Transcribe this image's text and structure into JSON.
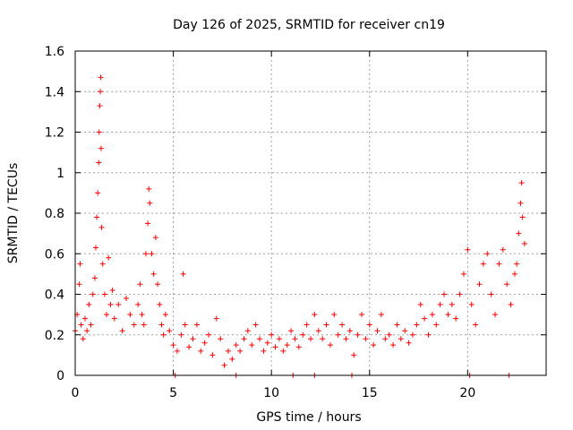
{
  "chart_data": {
    "type": "scatter",
    "title": "Day 126 of 2025, SRMTID for receiver cn19",
    "xlabel": "GPS time / hours",
    "ylabel": "SRMTID / TECUs",
    "xlim": [
      0,
      24
    ],
    "ylim": [
      0,
      1.6
    ],
    "xticks": [
      0,
      5,
      10,
      15,
      20
    ],
    "xtick_labels": [
      "0",
      "5",
      "10",
      "15",
      "20"
    ],
    "yticks": [
      0,
      0.2,
      0.4,
      0.6,
      0.8,
      1.0,
      1.2,
      1.4,
      1.6
    ],
    "ytick_labels": [
      "0",
      "0.2",
      "0.4",
      "0.6",
      "0.8",
      "1",
      "1.2",
      "1.4",
      "1.6"
    ],
    "grid": true,
    "marker": "+",
    "color": "#ff0000",
    "series": [
      {
        "name": "cn19",
        "points": [
          [
            0.0,
            0.22
          ],
          [
            0.1,
            0.3
          ],
          [
            0.2,
            0.45
          ],
          [
            0.25,
            0.55
          ],
          [
            0.3,
            0.25
          ],
          [
            0.4,
            0.18
          ],
          [
            0.5,
            0.28
          ],
          [
            0.6,
            0.22
          ],
          [
            0.7,
            0.35
          ],
          [
            0.8,
            0.25
          ],
          [
            0.9,
            0.4
          ],
          [
            1.0,
            0.48
          ],
          [
            1.05,
            0.63
          ],
          [
            1.1,
            0.78
          ],
          [
            1.15,
            0.9
          ],
          [
            1.2,
            1.05
          ],
          [
            1.22,
            1.2
          ],
          [
            1.25,
            1.33
          ],
          [
            1.28,
            1.4
          ],
          [
            1.3,
            1.47
          ],
          [
            1.32,
            1.12
          ],
          [
            1.35,
            0.73
          ],
          [
            1.4,
            0.55
          ],
          [
            1.5,
            0.4
          ],
          [
            1.6,
            0.3
          ],
          [
            1.7,
            0.58
          ],
          [
            1.8,
            0.35
          ],
          [
            1.9,
            0.42
          ],
          [
            2.0,
            0.28
          ],
          [
            2.2,
            0.35
          ],
          [
            2.4,
            0.22
          ],
          [
            2.6,
            0.38
          ],
          [
            2.8,
            0.3
          ],
          [
            3.0,
            0.25
          ],
          [
            3.2,
            0.35
          ],
          [
            3.3,
            0.45
          ],
          [
            3.4,
            0.3
          ],
          [
            3.5,
            0.25
          ],
          [
            3.6,
            0.6
          ],
          [
            3.7,
            0.75
          ],
          [
            3.75,
            0.92
          ],
          [
            3.8,
            0.85
          ],
          [
            3.9,
            0.6
          ],
          [
            4.0,
            0.5
          ],
          [
            4.1,
            0.68
          ],
          [
            4.2,
            0.45
          ],
          [
            4.3,
            0.35
          ],
          [
            4.4,
            0.25
          ],
          [
            4.5,
            0.2
          ],
          [
            4.6,
            0.3
          ],
          [
            4.8,
            0.22
          ],
          [
            5.0,
            0.15
          ],
          [
            5.2,
            0.12
          ],
          [
            5.4,
            0.2
          ],
          [
            5.5,
            0.5
          ],
          [
            5.6,
            0.25
          ],
          [
            5.8,
            0.14
          ],
          [
            6.0,
            0.18
          ],
          [
            6.2,
            0.25
          ],
          [
            6.4,
            0.12
          ],
          [
            6.6,
            0.16
          ],
          [
            6.8,
            0.2
          ],
          [
            7.0,
            0.1
          ],
          [
            7.2,
            0.28
          ],
          [
            7.4,
            0.18
          ],
          [
            7.6,
            0.05
          ],
          [
            7.8,
            0.12
          ],
          [
            8.0,
            0.08
          ],
          [
            8.2,
            0.15
          ],
          [
            8.4,
            0.12
          ],
          [
            8.6,
            0.18
          ],
          [
            8.8,
            0.22
          ],
          [
            9.0,
            0.15
          ],
          [
            9.2,
            0.25
          ],
          [
            9.4,
            0.18
          ],
          [
            9.6,
            0.12
          ],
          [
            9.8,
            0.16
          ],
          [
            10.0,
            0.2
          ],
          [
            10.2,
            0.14
          ],
          [
            10.4,
            0.18
          ],
          [
            10.6,
            0.12
          ],
          [
            10.8,
            0.15
          ],
          [
            11.0,
            0.22
          ],
          [
            11.2,
            0.18
          ],
          [
            11.4,
            0.14
          ],
          [
            11.6,
            0.2
          ],
          [
            11.8,
            0.25
          ],
          [
            12.0,
            0.18
          ],
          [
            12.2,
            0.3
          ],
          [
            12.4,
            0.22
          ],
          [
            12.6,
            0.18
          ],
          [
            12.8,
            0.25
          ],
          [
            13.0,
            0.15
          ],
          [
            13.2,
            0.3
          ],
          [
            13.4,
            0.2
          ],
          [
            13.6,
            0.25
          ],
          [
            13.8,
            0.18
          ],
          [
            14.0,
            0.22
          ],
          [
            14.2,
            0.1
          ],
          [
            14.4,
            0.2
          ],
          [
            14.6,
            0.3
          ],
          [
            14.8,
            0.18
          ],
          [
            15.0,
            0.25
          ],
          [
            15.2,
            0.15
          ],
          [
            15.4,
            0.22
          ],
          [
            15.6,
            0.3
          ],
          [
            15.8,
            0.18
          ],
          [
            16.0,
            0.2
          ],
          [
            16.2,
            0.15
          ],
          [
            16.4,
            0.25
          ],
          [
            16.6,
            0.18
          ],
          [
            16.8,
            0.22
          ],
          [
            17.0,
            0.16
          ],
          [
            17.2,
            0.2
          ],
          [
            17.4,
            0.25
          ],
          [
            17.6,
            0.35
          ],
          [
            17.8,
            0.28
          ],
          [
            18.0,
            0.2
          ],
          [
            18.2,
            0.3
          ],
          [
            18.4,
            0.25
          ],
          [
            18.6,
            0.35
          ],
          [
            18.8,
            0.4
          ],
          [
            19.0,
            0.3
          ],
          [
            19.2,
            0.35
          ],
          [
            19.4,
            0.28
          ],
          [
            19.6,
            0.4
          ],
          [
            19.8,
            0.5
          ],
          [
            20.0,
            0.62
          ],
          [
            20.2,
            0.35
          ],
          [
            20.4,
            0.25
          ],
          [
            20.6,
            0.45
          ],
          [
            20.8,
            0.55
          ],
          [
            21.0,
            0.6
          ],
          [
            21.2,
            0.4
          ],
          [
            21.4,
            0.3
          ],
          [
            21.6,
            0.55
          ],
          [
            21.8,
            0.62
          ],
          [
            22.0,
            0.45
          ],
          [
            22.2,
            0.35
          ],
          [
            22.4,
            0.5
          ],
          [
            22.5,
            0.55
          ],
          [
            22.6,
            0.7
          ],
          [
            22.7,
            0.85
          ],
          [
            22.75,
            0.95
          ],
          [
            22.8,
            0.78
          ],
          [
            22.9,
            0.65
          ]
        ]
      }
    ],
    "zero_points": [
      5.1,
      8.2,
      11.1,
      12.2,
      14.1,
      20.1,
      22.1
    ]
  }
}
